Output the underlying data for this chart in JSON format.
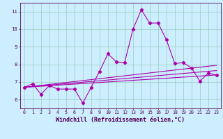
{
  "bg_color": "#cceeff",
  "line_color": "#aa00aa",
  "xlabel": "Windchill (Refroidissement éolien,°C)",
  "xlim": [
    -0.5,
    23.5
  ],
  "ylim": [
    5.5,
    11.5
  ],
  "yticks": [
    6,
    7,
    8,
    9,
    10,
    11
  ],
  "xticks": [
    0,
    1,
    2,
    3,
    4,
    5,
    6,
    7,
    8,
    9,
    10,
    11,
    12,
    13,
    14,
    15,
    16,
    17,
    18,
    19,
    20,
    21,
    22,
    23
  ],
  "main_x": [
    0,
    1,
    2,
    3,
    4,
    5,
    6,
    7,
    8,
    9,
    10,
    11,
    12,
    13,
    14,
    15,
    16,
    17,
    18,
    19,
    20,
    21,
    22,
    23
  ],
  "main_y": [
    6.7,
    6.9,
    6.3,
    6.8,
    6.6,
    6.6,
    6.6,
    5.8,
    6.7,
    7.6,
    8.6,
    8.15,
    8.1,
    10.0,
    11.1,
    10.35,
    10.35,
    9.4,
    8.05,
    8.1,
    7.8,
    7.05,
    7.5,
    7.4
  ],
  "trend1_x": [
    0,
    23
  ],
  "trend1_y": [
    6.7,
    7.4
  ],
  "trend2_x": [
    0,
    23
  ],
  "trend2_y": [
    6.7,
    7.65
  ],
  "trend3_x": [
    0,
    23
  ],
  "trend3_y": [
    6.7,
    7.95
  ],
  "grid_color": "#99ccbb",
  "marker": "D",
  "markersize": 2.2,
  "linewidth": 0.8,
  "tick_fontsize": 4.8,
  "xlabel_fontsize": 6.0
}
